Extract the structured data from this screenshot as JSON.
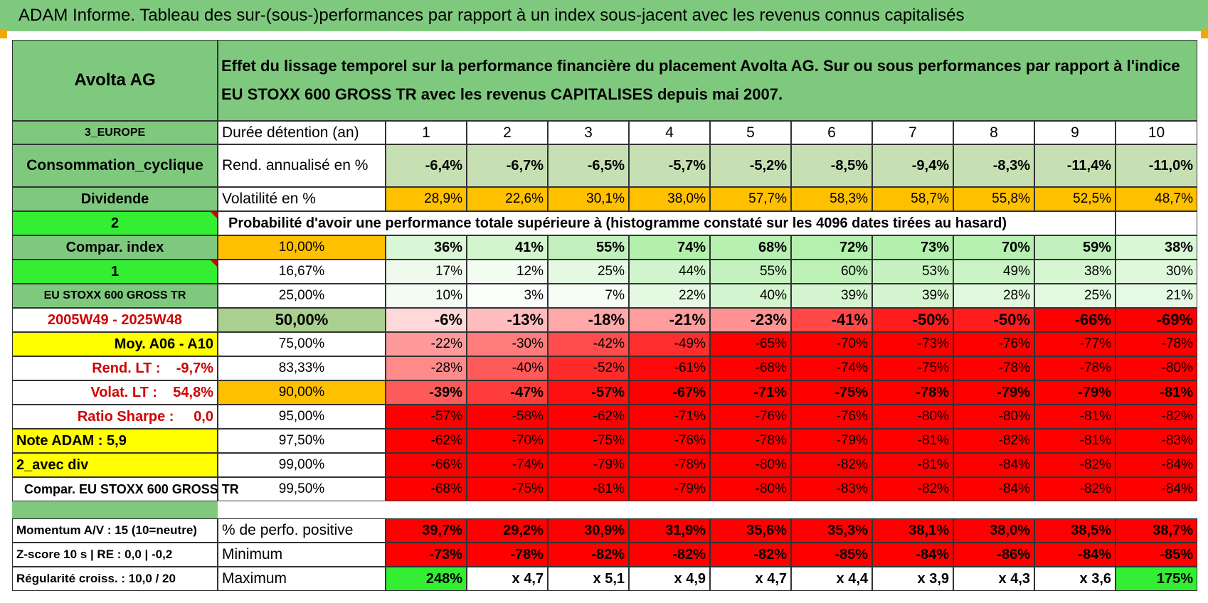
{
  "title": "ADAM Informe. Tableau des sur-(sous-)performances par rapport à un index sous-jacent avec les revenus connus capitalisés",
  "header": {
    "asset": "Avolta AG",
    "description": "Effet du lissage temporel sur la performance financière du placement Avolta AG. Sur ou sous performances par rapport à l'indice EU STOXX 600 GROSS TR avec les revenus CAPITALISES depuis mai 2007."
  },
  "left_labels": {
    "region": "3_EUROPE",
    "sector": "Consommation_cyclique",
    "type": "Dividende",
    "selector1": "2",
    "compar_index": "Compar. index",
    "selector2": "1",
    "index_name": "EU STOXX 600 GROSS TR",
    "period": "2005W49 - 2025W48",
    "moy": "Moy. A06 - A10",
    "rend_lt": "Rend. LT :    -9,7%",
    "volat_lt": "Volat. LT :    54,8%",
    "sharpe": "Ratio Sharpe :     0,0",
    "note": "Note ADAM : 5,9",
    "avec_div": "2_avec div",
    "compar_full": "Compar. EU STOXX 600 GROSS TR",
    "momentum": "Momentum A/V : 15 (10=neutre)",
    "zscore": "Z-score 10 s | RE : 0,0 | -0,2",
    "regularite": "Régularité croiss. : 10,0 / 20"
  },
  "row_labels": {
    "duree": "Durée détention (an)",
    "rend": "Rend. annualisé en %",
    "vol": "Volatilité en %",
    "prob": "Probabilité d'avoir une performance totale supérieure à (histogramme constaté sur les 4096 dates tirées au hasard)",
    "pct_pos": "% de perfo. positive",
    "minimum": "Minimum",
    "maximum": "Maximum"
  },
  "years": [
    "1",
    "2",
    "3",
    "4",
    "5",
    "6",
    "7",
    "8",
    "9",
    "10"
  ],
  "rend": [
    "-6,4%",
    "-6,7%",
    "-6,5%",
    "-5,7%",
    "-5,2%",
    "-8,5%",
    "-9,4%",
    "-8,3%",
    "-11,4%",
    "-11,0%"
  ],
  "vol": [
    "28,9%",
    "22,6%",
    "30,1%",
    "38,0%",
    "57,7%",
    "58,3%",
    "58,7%",
    "55,8%",
    "52,5%",
    "48,7%"
  ],
  "percentiles": [
    {
      "label": "10,00%",
      "values": [
        "36%",
        "41%",
        "55%",
        "74%",
        "68%",
        "72%",
        "73%",
        "70%",
        "59%",
        "38%"
      ]
    },
    {
      "label": "16,67%",
      "values": [
        "17%",
        "12%",
        "25%",
        "44%",
        "55%",
        "60%",
        "53%",
        "49%",
        "38%",
        "30%"
      ]
    },
    {
      "label": "25,00%",
      "values": [
        "10%",
        "3%",
        "7%",
        "22%",
        "40%",
        "39%",
        "39%",
        "28%",
        "25%",
        "21%"
      ]
    },
    {
      "label": "50,00%",
      "values": [
        "-6%",
        "-13%",
        "-18%",
        "-21%",
        "-23%",
        "-41%",
        "-50%",
        "-50%",
        "-66%",
        "-69%"
      ]
    },
    {
      "label": "75,00%",
      "values": [
        "-22%",
        "-30%",
        "-42%",
        "-49%",
        "-65%",
        "-70%",
        "-73%",
        "-76%",
        "-77%",
        "-78%"
      ]
    },
    {
      "label": "83,33%",
      "values": [
        "-28%",
        "-40%",
        "-52%",
        "-61%",
        "-68%",
        "-74%",
        "-75%",
        "-78%",
        "-78%",
        "-80%"
      ]
    },
    {
      "label": "90,00%",
      "values": [
        "-39%",
        "-47%",
        "-57%",
        "-67%",
        "-71%",
        "-75%",
        "-78%",
        "-79%",
        "-79%",
        "-81%"
      ]
    },
    {
      "label": "95,00%",
      "values": [
        "-57%",
        "-58%",
        "-62%",
        "-71%",
        "-76%",
        "-76%",
        "-80%",
        "-80%",
        "-81%",
        "-82%"
      ]
    },
    {
      "label": "97,50%",
      "values": [
        "-62%",
        "-70%",
        "-75%",
        "-76%",
        "-78%",
        "-79%",
        "-81%",
        "-82%",
        "-81%",
        "-83%"
      ]
    },
    {
      "label": "99,00%",
      "values": [
        "-66%",
        "-74%",
        "-79%",
        "-78%",
        "-80%",
        "-82%",
        "-81%",
        "-84%",
        "-82%",
        "-84%"
      ]
    },
    {
      "label": "99,50%",
      "values": [
        "-68%",
        "-75%",
        "-81%",
        "-79%",
        "-80%",
        "-83%",
        "-82%",
        "-84%",
        "-82%",
        "-84%"
      ]
    }
  ],
  "pct_pos": [
    "39,7%",
    "29,2%",
    "30,9%",
    "31,9%",
    "35,6%",
    "35,3%",
    "38,1%",
    "38,0%",
    "38,5%",
    "38,7%"
  ],
  "minimum": [
    "-73%",
    "-78%",
    "-82%",
    "-82%",
    "-82%",
    "-85%",
    "-84%",
    "-86%",
    "-84%",
    "-85%"
  ],
  "maximum": [
    "248%",
    "x 4,7",
    "x 5,1",
    "x 4,9",
    "x 4,7",
    "x 4,4",
    "x 3,9",
    "x 4,3",
    "x 3,6",
    "175%"
  ],
  "colors": {
    "header_green": "#7fc97f",
    "bright_green": "#33ee33",
    "yellow": "#ffff00",
    "orange": "#ffc000",
    "red_text": "#d00000",
    "neg_red": "#ff0000"
  }
}
